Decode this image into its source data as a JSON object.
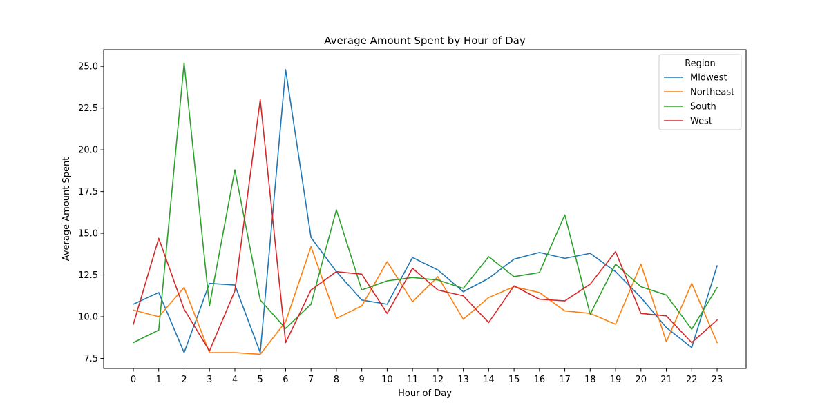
{
  "chart_data": {
    "type": "line",
    "title": "Average Amount Spent by Hour of Day",
    "xlabel": "Hour of Day",
    "ylabel": "Average Amount Spent",
    "x": [
      0,
      1,
      2,
      3,
      4,
      5,
      6,
      7,
      8,
      9,
      10,
      11,
      12,
      13,
      14,
      15,
      16,
      17,
      18,
      19,
      20,
      21,
      22,
      23
    ],
    "ylim": [
      6.9,
      26.0
    ],
    "yticks": [
      7.5,
      10.0,
      12.5,
      15.0,
      17.5,
      20.0,
      22.5,
      25.0
    ],
    "ytick_labels": [
      "7.5",
      "10.0",
      "12.5",
      "15.0",
      "17.5",
      "20.0",
      "22.5",
      "25.0"
    ],
    "grid": false,
    "legend": {
      "title": "Region",
      "placement": "top-right"
    },
    "series": [
      {
        "name": "Midwest",
        "color": "#1f77b4",
        "values": [
          10.75,
          11.45,
          7.85,
          12.0,
          11.9,
          7.85,
          24.8,
          14.75,
          12.7,
          11.0,
          10.75,
          13.55,
          12.8,
          11.5,
          12.3,
          13.45,
          13.85,
          13.5,
          13.8,
          12.7,
          11.15,
          9.35,
          8.15,
          13.05
        ]
      },
      {
        "name": "Northeast",
        "color": "#ff7f0e",
        "values": [
          10.4,
          10.0,
          11.75,
          7.85,
          7.85,
          7.75,
          9.7,
          14.2,
          9.9,
          10.65,
          13.3,
          10.9,
          12.4,
          9.85,
          11.15,
          11.8,
          11.45,
          10.35,
          10.2,
          9.55,
          13.15,
          8.5,
          12.0,
          8.45
        ]
      },
      {
        "name": "South",
        "color": "#2ca02c",
        "values": [
          8.45,
          9.2,
          25.2,
          10.65,
          18.8,
          11.0,
          9.3,
          10.75,
          16.4,
          11.6,
          12.15,
          12.35,
          12.2,
          11.7,
          13.6,
          12.4,
          12.65,
          16.1,
          10.15,
          13.15,
          11.8,
          11.3,
          9.25,
          11.75
        ]
      },
      {
        "name": "West",
        "color": "#d62728",
        "values": [
          9.55,
          14.7,
          10.45,
          7.95,
          11.55,
          23.0,
          8.45,
          11.6,
          12.7,
          12.55,
          10.2,
          12.9,
          11.6,
          11.25,
          9.65,
          11.85,
          11.05,
          10.95,
          11.95,
          13.9,
          10.2,
          10.05,
          8.45,
          9.8
        ]
      }
    ]
  }
}
